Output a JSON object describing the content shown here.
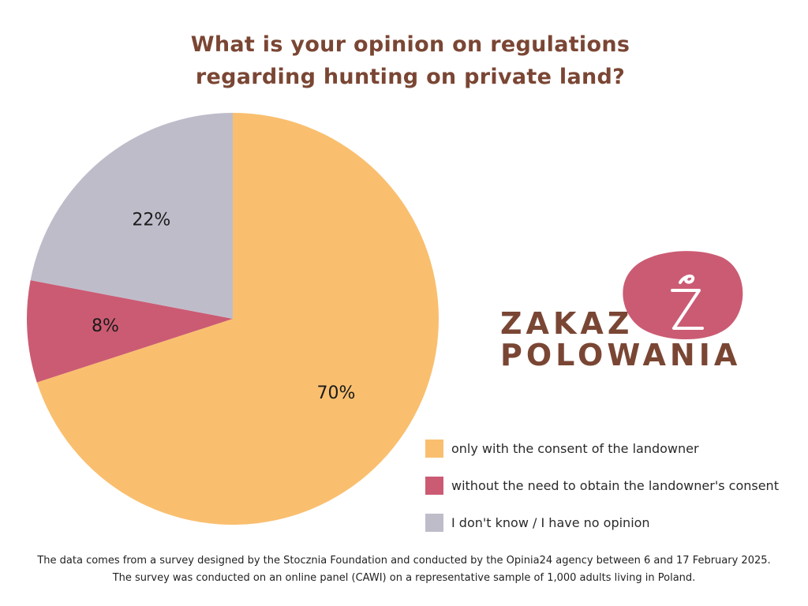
{
  "title_lines": [
    "What is your opinion on regulations",
    "regarding hunting on private land?"
  ],
  "chart_data": {
    "type": "pie",
    "title": "What is your opinion on regulations regarding hunting on private land?",
    "unit": "%",
    "slices": [
      {
        "label": "only with the consent of the landowner",
        "value": 70,
        "display": "70%",
        "color": "#f9bf6f"
      },
      {
        "label": "without the need to obtain the landowner's consent",
        "value": 8,
        "display": "8%",
        "color": "#cb5b73"
      },
      {
        "label": "I don't know / I have no opinion",
        "value": 22,
        "display": "22%",
        "color": "#bfbcca"
      }
    ],
    "legend_position": "bottom-right"
  },
  "logo": {
    "line1": "ZAKAZ",
    "line2": "POLOWANIA",
    "mark": "Z",
    "blob_color": "#cb5b73",
    "text_color": "#7a4634"
  },
  "footnote_lines": [
    "The data comes from a survey designed by the Stocznia Foundation and conducted by the Opinia24 agency between 6 and 17 February 2025.",
    "The survey was conducted on an online panel (CAWI) on a representative sample of 1,000 adults living in Poland."
  ]
}
